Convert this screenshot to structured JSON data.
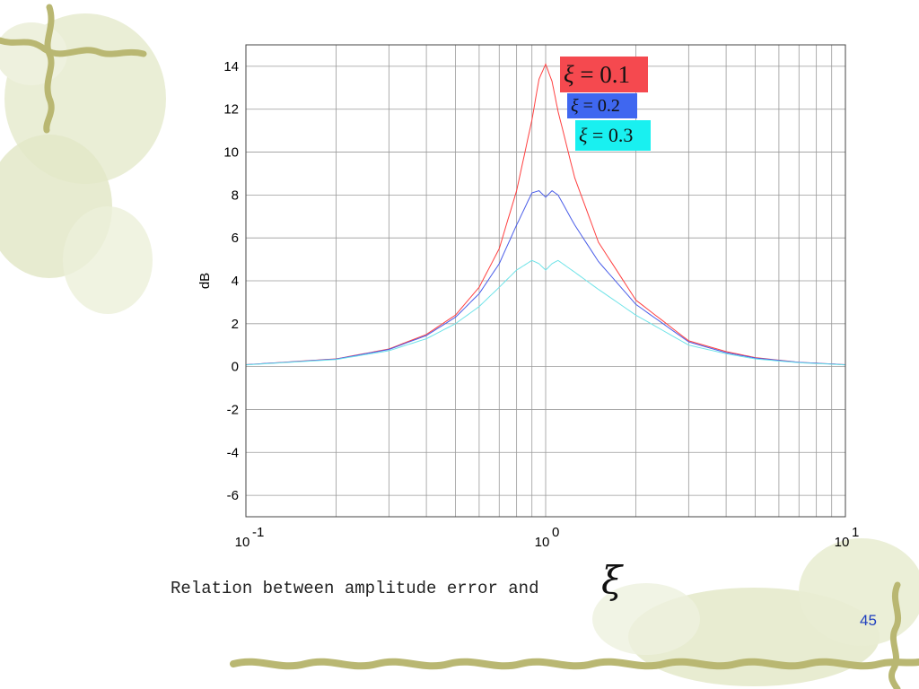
{
  "chart_data": {
    "type": "line",
    "x_scale": "log",
    "xlim": [
      0.1,
      10
    ],
    "ylim": [
      -7,
      15
    ],
    "ylabel": "dB",
    "xlabel": "",
    "grid": true,
    "y_ticks": [
      "14",
      "12",
      "10",
      "8",
      "6",
      "4",
      "2",
      "0",
      "-2",
      "-4",
      "-6"
    ],
    "x_ticks": [
      {
        "base": "10",
        "exp": "-1"
      },
      {
        "base": "10",
        "exp": "0"
      },
      {
        "base": "10",
        "exp": "1"
      }
    ],
    "series": [
      {
        "name": "ξ = 0.1",
        "color": "#ff4040",
        "x": [
          0.1,
          0.2,
          0.3,
          0.4,
          0.5,
          0.6,
          0.7,
          0.8,
          0.9,
          0.95,
          1.0,
          1.05,
          1.1,
          1.25,
          1.5,
          2,
          3,
          4,
          5,
          7,
          10
        ],
        "y": [
          0.09,
          0.36,
          0.82,
          1.5,
          2.4,
          3.7,
          5.5,
          8.2,
          11.5,
          13.4,
          14.1,
          13.3,
          11.9,
          8.8,
          5.8,
          3.1,
          1.2,
          0.7,
          0.42,
          0.2,
          0.09
        ]
      },
      {
        "name": "ξ = 0.2",
        "color": "#4a5de8",
        "x": [
          0.1,
          0.2,
          0.3,
          0.4,
          0.5,
          0.6,
          0.7,
          0.8,
          0.9,
          0.95,
          1.0,
          1.05,
          1.1,
          1.25,
          1.5,
          2,
          3,
          4,
          5,
          7,
          10
        ],
        "y": [
          0.09,
          0.35,
          0.8,
          1.45,
          2.3,
          3.4,
          4.8,
          6.6,
          8.1,
          8.2,
          7.9,
          8.2,
          8.0,
          6.6,
          4.9,
          2.9,
          1.15,
          0.65,
          0.4,
          0.2,
          0.09
        ]
      },
      {
        "name": "ξ = 0.3",
        "color": "#6fe3e8",
        "x": [
          0.1,
          0.2,
          0.3,
          0.4,
          0.5,
          0.6,
          0.7,
          0.8,
          0.9,
          0.95,
          1.0,
          1.05,
          1.1,
          1.25,
          1.5,
          2,
          3,
          4,
          5,
          7,
          10
        ],
        "y": [
          0.08,
          0.33,
          0.74,
          1.3,
          2.0,
          2.8,
          3.7,
          4.5,
          4.95,
          4.8,
          4.5,
          4.8,
          4.95,
          4.4,
          3.6,
          2.4,
          1.0,
          0.6,
          0.36,
          0.18,
          0.08
        ]
      }
    ]
  },
  "legend": [
    {
      "symbol": "ξ",
      "text": "= 0.1",
      "bg": "#f5494f"
    },
    {
      "symbol": "ξ",
      "text": "= 0.2",
      "bg": "#3f67f0"
    },
    {
      "symbol": "ξ",
      "text": "= 0.3",
      "bg": "#19f0f0"
    }
  ],
  "caption": {
    "text": "Relation between amplitude error and",
    "symbol": "ξ"
  },
  "page_number": "45"
}
